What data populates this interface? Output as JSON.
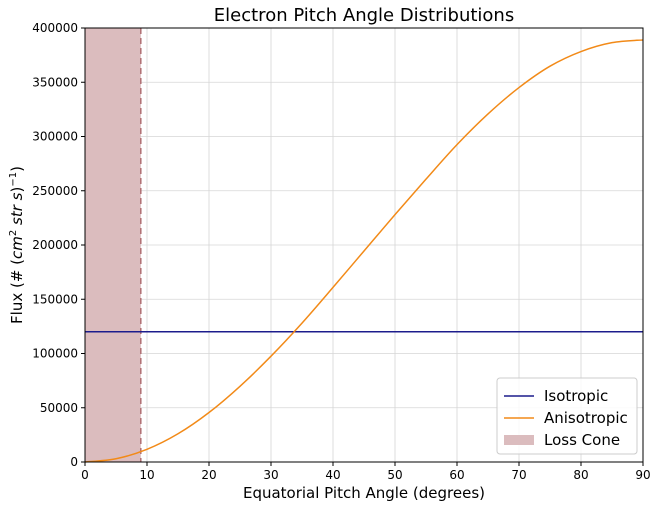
{
  "chart_data": {
    "type": "line",
    "title": "Electron Pitch Angle Distributions",
    "xlabel": "Equatorial Pitch Angle (degrees)",
    "ylabel_parts": {
      "prefix": "Flux (# (",
      "cm": "cm",
      "two": "2",
      "str_s": "str s",
      "close": ")",
      "neg_one": "−1",
      "end": ")"
    },
    "xlim": [
      0,
      90
    ],
    "ylim": [
      0,
      400000
    ],
    "x_ticks": [
      0,
      10,
      20,
      30,
      40,
      50,
      60,
      70,
      80,
      90
    ],
    "x_tick_labels": [
      "0",
      "10",
      "20",
      "30",
      "40",
      "50",
      "60",
      "70",
      "80",
      "90"
    ],
    "y_ticks": [
      0,
      50000,
      100000,
      150000,
      200000,
      250000,
      300000,
      350000,
      400000
    ],
    "y_tick_labels": [
      "0",
      "50000",
      "100000",
      "150000",
      "200000",
      "250000",
      "300000",
      "350000",
      "400000"
    ],
    "grid": true,
    "legend_position": "lower-right",
    "loss_cone": {
      "name": "Loss Cone",
      "x_min": 0,
      "x_max": 9,
      "color": "#dbbcbe",
      "edge_color": "#b06f73"
    },
    "series": [
      {
        "name": "Isotropic",
        "color": "#1c1c8c",
        "x": [
          0,
          90
        ],
        "y": [
          120000,
          120000
        ]
      },
      {
        "name": "Anisotropic",
        "color": "#f28a18",
        "x": [
          0,
          5,
          10,
          15,
          20,
          25,
          30,
          35,
          40,
          45,
          50,
          55,
          60,
          65,
          70,
          75,
          80,
          85,
          90
        ],
        "y": [
          0,
          3000,
          11700,
          26000,
          45600,
          69800,
          97500,
          128000,
          160900,
          194500,
          228000,
          260700,
          292500,
          320800,
          345100,
          364800,
          378300,
          386500,
          389000
        ]
      }
    ]
  }
}
